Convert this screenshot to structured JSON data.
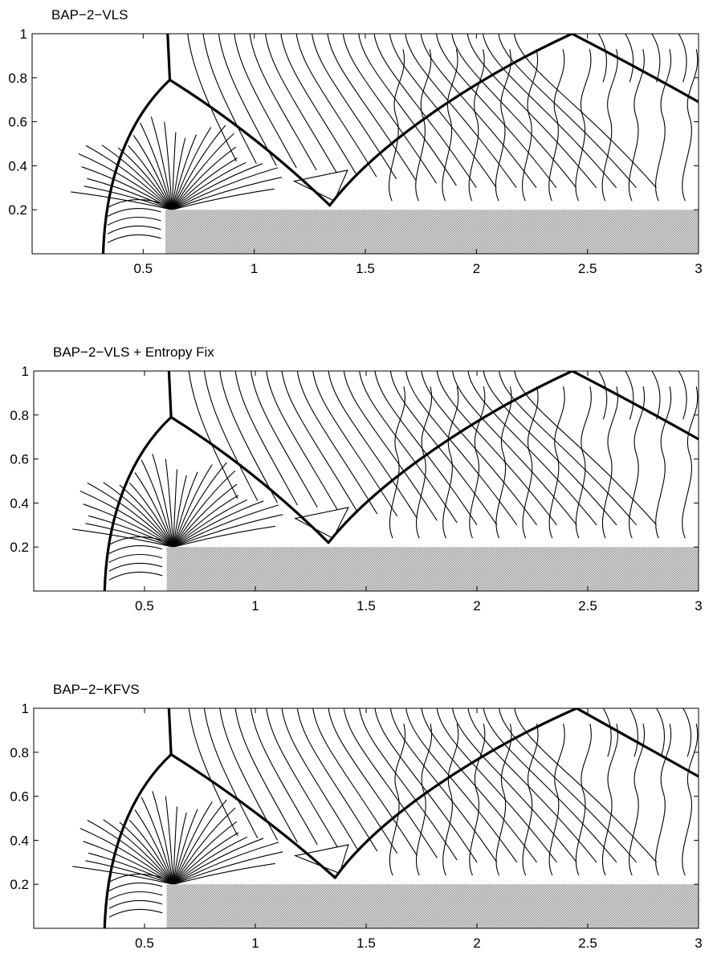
{
  "chart_data": [
    {
      "type": "contour",
      "title": "BAP−2−VLS",
      "xlim": [
        0,
        3
      ],
      "ylim": [
        0,
        1
      ],
      "x_tick_labels": [
        "0.5",
        "1",
        "1.5",
        "2",
        "2.5",
        "3"
      ],
      "y_tick_labels": [
        "0.2",
        "0.4",
        "0.6",
        "0.8",
        "1"
      ],
      "step": {
        "x_start": 0.6,
        "x_end": 3.0,
        "height": 0.2
      },
      "shock": {
        "bow_foot_x": 0.32,
        "mach_stem_x": 0.62,
        "triple_point": [
          0.62,
          0.79
        ],
        "reflection_point": [
          1.34,
          0.22
        ],
        "top_reflection_x": 2.43,
        "exit": [
          3.0,
          0.69
        ]
      }
    },
    {
      "type": "contour",
      "title": "BAP−2−VLS + Entropy Fix",
      "xlim": [
        0,
        3
      ],
      "ylim": [
        0,
        1
      ],
      "x_tick_labels": [
        "0.5",
        "1",
        "1.5",
        "2",
        "2.5",
        "3"
      ],
      "y_tick_labels": [
        "0.2",
        "0.4",
        "0.6",
        "0.8",
        "1"
      ],
      "step": {
        "x_start": 0.6,
        "x_end": 3.0,
        "height": 0.2
      },
      "shock": {
        "bow_foot_x": 0.32,
        "mach_stem_x": 0.62,
        "triple_point": [
          0.62,
          0.79
        ],
        "reflection_point": [
          1.33,
          0.22
        ],
        "top_reflection_x": 2.43,
        "exit": [
          3.0,
          0.69
        ]
      }
    },
    {
      "type": "contour",
      "title": "BAP−2−KFVS",
      "xlim": [
        0,
        3
      ],
      "ylim": [
        0,
        1
      ],
      "x_tick_labels": [
        "0.5",
        "1",
        "1.5",
        "2",
        "2.5",
        "3"
      ],
      "y_tick_labels": [
        "0.2",
        "0.4",
        "0.6",
        "0.8",
        "1"
      ],
      "step": {
        "x_start": 0.6,
        "x_end": 3.0,
        "height": 0.2
      },
      "shock": {
        "bow_foot_x": 0.32,
        "mach_stem_x": 0.62,
        "triple_point": [
          0.62,
          0.79
        ],
        "reflection_point": [
          1.36,
          0.23
        ],
        "top_reflection_x": 2.45,
        "exit": [
          3.0,
          0.69
        ]
      }
    }
  ],
  "colors": {
    "line": "#000000",
    "step_fill": "#b8b8b8",
    "background": "#ffffff"
  }
}
